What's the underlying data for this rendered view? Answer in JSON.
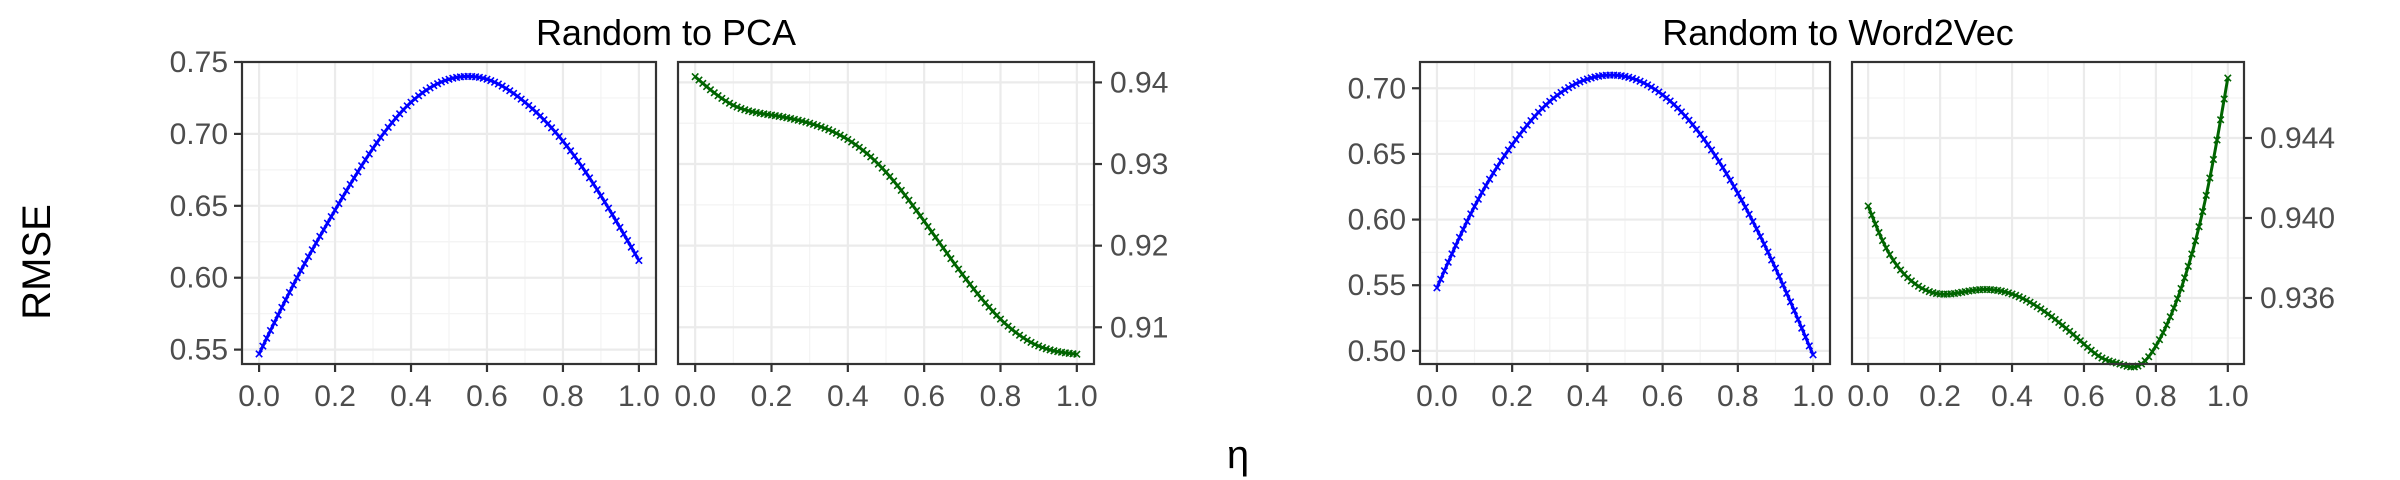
{
  "figure": {
    "y_axis_title": "RMSE",
    "x_axis_title": "η",
    "x_tick_labels": [
      "0.0",
      "0.2",
      "0.4",
      "0.6",
      "0.8",
      "1.0"
    ]
  },
  "colors": {
    "left_series": "#0000ff",
    "right_series": "#006400",
    "point_marker": "x"
  },
  "chart_data": [
    {
      "type": "line",
      "group_title": "Random to PCA",
      "panel": "left",
      "xlabel": "η",
      "ylabel": "RMSE",
      "xlim": [
        0.0,
        1.0
      ],
      "ylim": [
        0.54,
        0.75
      ],
      "y_ticks": [
        0.55,
        0.6,
        0.65,
        0.7,
        0.75
      ],
      "y_tick_labels": [
        "0.55",
        "0.60",
        "0.65",
        "0.70",
        "0.75"
      ],
      "y_axis_side": "left",
      "grid": true,
      "color": "#0000ff",
      "x": [
        0.0,
        0.1,
        0.2,
        0.3,
        0.4,
        0.5,
        0.55,
        0.6,
        0.7,
        0.8,
        0.9,
        1.0
      ],
      "y": [
        0.547,
        0.6,
        0.647,
        0.69,
        0.722,
        0.738,
        0.74,
        0.738,
        0.722,
        0.695,
        0.657,
        0.612
      ]
    },
    {
      "type": "line",
      "group_title": "Random to PCA",
      "panel": "right",
      "xlabel": "η",
      "ylabel": "RMSE",
      "xlim": [
        0.0,
        1.0
      ],
      "ylim": [
        0.9055,
        0.9425
      ],
      "y_ticks": [
        0.91,
        0.92,
        0.93,
        0.94
      ],
      "y_tick_labels": [
        "0.91",
        "0.92",
        "0.93",
        "0.94"
      ],
      "y_axis_side": "right",
      "grid": true,
      "color": "#006400",
      "x": [
        0.0,
        0.1,
        0.2,
        0.3,
        0.4,
        0.5,
        0.6,
        0.7,
        0.8,
        0.9,
        1.0
      ],
      "y": [
        0.9407,
        0.9372,
        0.936,
        0.935,
        0.933,
        0.929,
        0.923,
        0.9165,
        0.911,
        0.9077,
        0.9067
      ]
    },
    {
      "type": "line",
      "group_title": "Random to Word2Vec",
      "panel": "left",
      "xlabel": "η",
      "ylabel": "RMSE",
      "xlim": [
        0.0,
        1.0
      ],
      "ylim": [
        0.49,
        0.72
      ],
      "y_ticks": [
        0.5,
        0.55,
        0.6,
        0.65,
        0.7
      ],
      "y_tick_labels": [
        "0.50",
        "0.55",
        "0.60",
        "0.65",
        "0.70"
      ],
      "y_axis_side": "left",
      "grid": true,
      "color": "#0000ff",
      "x": [
        0.0,
        0.1,
        0.2,
        0.3,
        0.4,
        0.47,
        0.5,
        0.6,
        0.7,
        0.8,
        0.9,
        1.0
      ],
      "y": [
        0.548,
        0.61,
        0.657,
        0.69,
        0.707,
        0.71,
        0.709,
        0.695,
        0.665,
        0.62,
        0.563,
        0.497
      ]
    },
    {
      "type": "line",
      "group_title": "Random to Word2Vec",
      "panel": "right",
      "xlabel": "η",
      "ylabel": "RMSE",
      "xlim": [
        0.0,
        1.0
      ],
      "ylim": [
        0.9327,
        0.9478
      ],
      "y_ticks": [
        0.936,
        0.94,
        0.944
      ],
      "y_tick_labels": [
        "0.936",
        "0.940",
        "0.944"
      ],
      "y_axis_side": "right",
      "grid": true,
      "color": "#006400",
      "x": [
        0.0,
        0.05,
        0.1,
        0.2,
        0.3,
        0.4,
        0.5,
        0.6,
        0.65,
        0.7,
        0.75,
        0.8,
        0.85,
        0.9,
        0.95,
        1.0
      ],
      "y": [
        0.9406,
        0.9385,
        0.9372,
        0.9362,
        0.9364,
        0.9362,
        0.9352,
        0.9337,
        0.933,
        0.9327,
        0.9326,
        0.9336,
        0.9355,
        0.9382,
        0.942,
        0.947
      ]
    }
  ]
}
